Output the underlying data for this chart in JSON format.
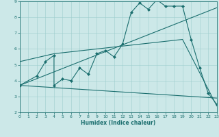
{
  "title": "",
  "xlabel": "Humidex (Indice chaleur)",
  "bg_color": "#cce8e8",
  "line_color": "#1a6e6e",
  "xlim": [
    0,
    23
  ],
  "ylim": [
    2,
    9
  ],
  "xticks": [
    0,
    1,
    2,
    3,
    4,
    5,
    6,
    7,
    8,
    9,
    10,
    11,
    12,
    13,
    14,
    15,
    16,
    17,
    18,
    19,
    20,
    21,
    22,
    23
  ],
  "yticks": [
    2,
    3,
    4,
    5,
    6,
    7,
    8,
    9
  ],
  "lines": [
    {
      "x": [
        0,
        2,
        3,
        4,
        4,
        5,
        6,
        7,
        8,
        9,
        10,
        11,
        12,
        13,
        14,
        15,
        16,
        17,
        18,
        19,
        20,
        21,
        22,
        23
      ],
      "y": [
        3.7,
        4.3,
        5.2,
        5.6,
        3.7,
        4.1,
        4.0,
        4.8,
        4.4,
        5.7,
        5.9,
        5.5,
        6.3,
        8.3,
        8.9,
        8.5,
        9.1,
        8.7,
        8.7,
        8.7,
        6.6,
        4.8,
        3.2,
        2.5
      ],
      "marker": true
    },
    {
      "x": [
        0,
        23
      ],
      "y": [
        3.7,
        8.6
      ],
      "marker": false
    },
    {
      "x": [
        0,
        4,
        19,
        23
      ],
      "y": [
        5.2,
        5.7,
        6.6,
        2.4
      ],
      "marker": false
    },
    {
      "x": [
        0,
        23
      ],
      "y": [
        3.7,
        2.9
      ],
      "marker": false
    }
  ]
}
